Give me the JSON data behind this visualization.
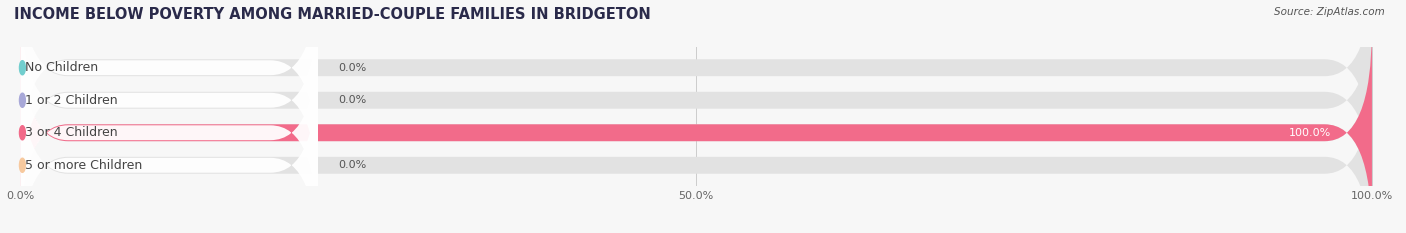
{
  "title": "INCOME BELOW POVERTY AMONG MARRIED-COUPLE FAMILIES IN BRIDGETON",
  "source": "Source: ZipAtlas.com",
  "categories": [
    "No Children",
    "1 or 2 Children",
    "3 or 4 Children",
    "5 or more Children"
  ],
  "values": [
    0.0,
    0.0,
    100.0,
    0.0
  ],
  "bar_colors": [
    "#72cece",
    "#a8a8d8",
    "#f26b8a",
    "#f7c99e"
  ],
  "background_color": "#f7f7f7",
  "bar_bg_color": "#e2e2e2",
  "xtick_labels": [
    "0.0%",
    "50.0%",
    "100.0%"
  ],
  "title_fontsize": 10.5,
  "label_fontsize": 9,
  "value_fontsize": 8,
  "bar_height": 0.52,
  "figsize": [
    14.06,
    2.33
  ],
  "dpi": 100
}
